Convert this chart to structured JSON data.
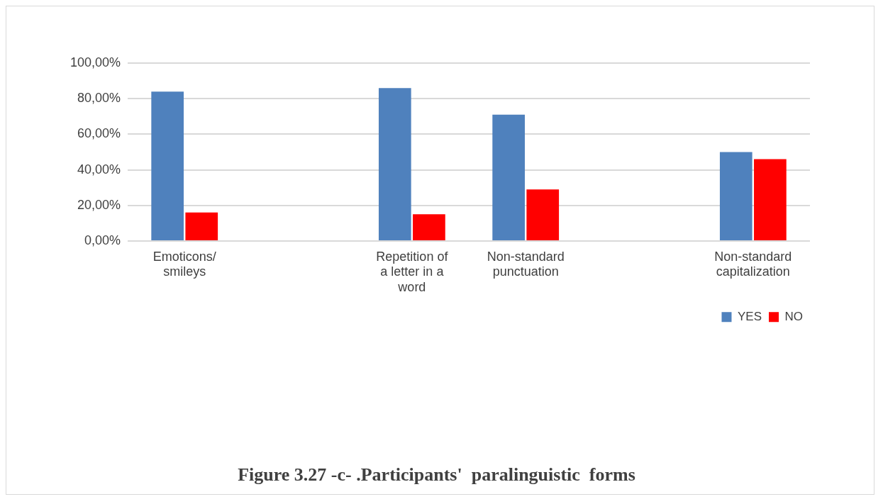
{
  "chart_data": {
    "type": "bar",
    "title": "Figure 3.27 -c- .Participants'  paralinguistic  forms",
    "categories": [
      "Emoticons/ smileys",
      null,
      "Repetition of a letter in a word",
      "Non-standard punctuation",
      null,
      "Non-standard capitalization"
    ],
    "series": [
      {
        "name": "YES",
        "color": "#4f81bd",
        "values": [
          84,
          null,
          86,
          71,
          null,
          50
        ]
      },
      {
        "name": "NO",
        "color": "#ff0000",
        "values": [
          16,
          null,
          15,
          29,
          null,
          46
        ]
      }
    ],
    "ylim": [
      0,
      100
    ],
    "yticks": [
      {
        "value": 0,
        "label": "0,00%"
      },
      {
        "value": 20,
        "label": "20,00%"
      },
      {
        "value": 40,
        "label": "40,00%"
      },
      {
        "value": 60,
        "label": "60,00%"
      },
      {
        "value": 80,
        "label": "80,00%"
      },
      {
        "value": 100,
        "label": "100,00%"
      }
    ],
    "grid": "y",
    "legend": "bottom right"
  }
}
